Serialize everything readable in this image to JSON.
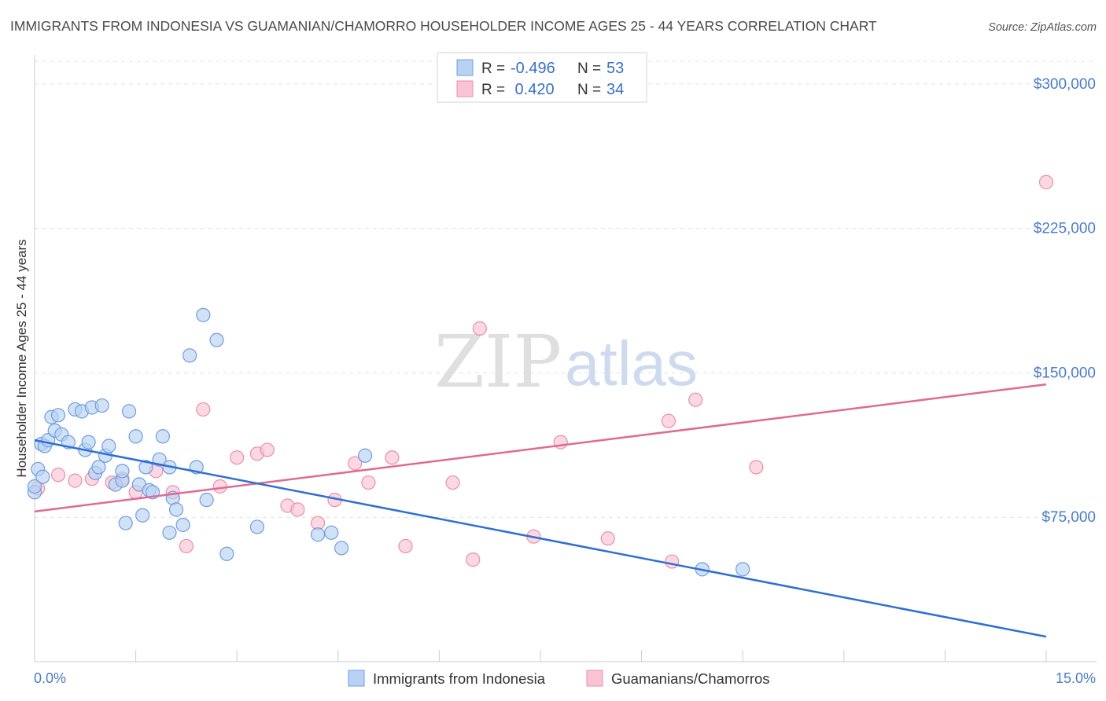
{
  "title": "IMMIGRANTS FROM INDONESIA VS GUAMANIAN/CHAMORRO HOUSEHOLDER INCOME AGES 25 - 44 YEARS CORRELATION CHART",
  "source": "Source: ZipAtlas.com",
  "watermark": {
    "zip": "ZIP",
    "atlas": "atlas"
  },
  "colors": {
    "blue_fill": "#b9d2f3",
    "blue_stroke": "#6f9de0",
    "blue_line": "#2f6fd3",
    "pink_fill": "#f9c3d3",
    "pink_stroke": "#ea8fab",
    "pink_line": "#e06a93",
    "axis_text": "#4a7cc7",
    "grid": "#e2e2e2"
  },
  "legend": {
    "rows": [
      {
        "r_label": "R =",
        "r_value": "-0.496",
        "n_label": "N =",
        "n_value": "53"
      },
      {
        "r_label": "R =",
        "r_value": " 0.420",
        "n_label": "N =",
        "n_value": "34"
      }
    ]
  },
  "chart_data": {
    "type": "scatter",
    "title": "IMMIGRANTS FROM INDONESIA VS GUAMANIAN/CHAMORRO HOUSEHOLDER INCOME AGES 25 - 44 YEARS CORRELATION CHART",
    "xlabel": "",
    "ylabel": "Householder Income Ages 25 - 44 years",
    "xlim": [
      0,
      15
    ],
    "ylim": [
      0,
      315000
    ],
    "x_tick_labels": [
      "0.0%",
      "15.0%"
    ],
    "y_ticks": [
      75000,
      150000,
      225000,
      300000
    ],
    "y_tick_labels": [
      "$75,000",
      "$150,000",
      "$225,000",
      "$300,000"
    ],
    "grid": true,
    "series": [
      {
        "name": "Immigrants from Indonesia",
        "R": -0.496,
        "N": 53,
        "points": [
          [
            0.05,
            100000
          ],
          [
            0.1,
            113000
          ],
          [
            0.15,
            112000
          ],
          [
            0.2,
            115000
          ],
          [
            0.25,
            127000
          ],
          [
            0.3,
            120000
          ],
          [
            0.35,
            128000
          ],
          [
            0.4,
            118000
          ],
          [
            0.5,
            114000
          ],
          [
            0.6,
            131000
          ],
          [
            0.7,
            130000
          ],
          [
            0.75,
            110000
          ],
          [
            0.8,
            114000
          ],
          [
            0.85,
            132000
          ],
          [
            0.9,
            98000
          ],
          [
            0.95,
            101000
          ],
          [
            1.0,
            133000
          ],
          [
            1.05,
            107000
          ],
          [
            1.1,
            112000
          ],
          [
            1.2,
            92000
          ],
          [
            1.3,
            94000
          ],
          [
            1.3,
            99000
          ],
          [
            1.35,
            72000
          ],
          [
            1.4,
            130000
          ],
          [
            1.5,
            117000
          ],
          [
            1.55,
            92000
          ],
          [
            1.6,
            76000
          ],
          [
            1.65,
            101000
          ],
          [
            1.7,
            89000
          ],
          [
            1.75,
            88000
          ],
          [
            1.85,
            105000
          ],
          [
            1.9,
            117000
          ],
          [
            2.0,
            101000
          ],
          [
            2.0,
            67000
          ],
          [
            2.05,
            85000
          ],
          [
            2.1,
            79000
          ],
          [
            2.2,
            71000
          ],
          [
            2.3,
            159000
          ],
          [
            2.4,
            101000
          ],
          [
            2.5,
            180000
          ],
          [
            2.55,
            84000
          ],
          [
            2.7,
            167000
          ],
          [
            2.85,
            56000
          ],
          [
            3.3,
            70000
          ],
          [
            4.2,
            66000
          ],
          [
            4.4,
            67000
          ],
          [
            4.55,
            59000
          ],
          [
            4.9,
            107000
          ],
          [
            9.9,
            48000
          ],
          [
            10.5,
            48000
          ],
          [
            0.0,
            88000
          ],
          [
            0.0,
            91000
          ],
          [
            0.12,
            96000
          ]
        ]
      },
      {
        "name": "Guamanians/Chamorros",
        "R": 0.42,
        "N": 34,
        "points": [
          [
            0.05,
            90000
          ],
          [
            0.35,
            97000
          ],
          [
            0.6,
            94000
          ],
          [
            0.85,
            95000
          ],
          [
            1.15,
            93000
          ],
          [
            1.3,
            95000
          ],
          [
            1.5,
            88000
          ],
          [
            1.8,
            99000
          ],
          [
            2.05,
            88000
          ],
          [
            2.25,
            60000
          ],
          [
            2.5,
            131000
          ],
          [
            2.75,
            91000
          ],
          [
            3.0,
            106000
          ],
          [
            3.3,
            108000
          ],
          [
            3.45,
            110000
          ],
          [
            3.75,
            81000
          ],
          [
            3.9,
            79000
          ],
          [
            4.2,
            72000
          ],
          [
            4.45,
            84000
          ],
          [
            4.75,
            103000
          ],
          [
            4.95,
            93000
          ],
          [
            5.3,
            106000
          ],
          [
            5.5,
            60000
          ],
          [
            6.2,
            93000
          ],
          [
            6.5,
            53000
          ],
          [
            6.6,
            173000
          ],
          [
            7.4,
            65000
          ],
          [
            7.8,
            114000
          ],
          [
            8.5,
            64000
          ],
          [
            9.4,
            125000
          ],
          [
            9.45,
            52000
          ],
          [
            9.8,
            136000
          ],
          [
            10.7,
            101000
          ],
          [
            15.0,
            249000
          ]
        ]
      }
    ],
    "trend_lines": [
      {
        "series": "Immigrants from Indonesia",
        "from": [
          0,
          115000
        ],
        "to": [
          15,
          13000
        ]
      },
      {
        "series": "Guamanians/Chamorros",
        "from": [
          0,
          78000
        ],
        "to": [
          15,
          144000
        ]
      }
    ]
  },
  "bottom_legend": [
    "Immigrants from Indonesia",
    "Guamanians/Chamorros"
  ]
}
